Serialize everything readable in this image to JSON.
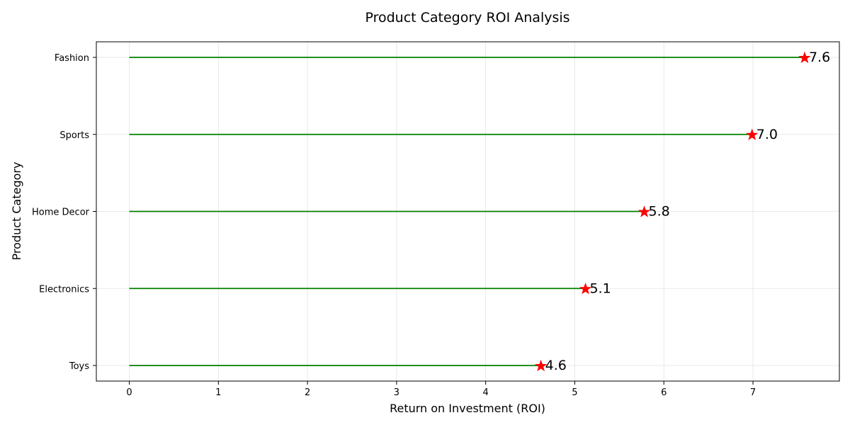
{
  "chart_data": {
    "type": "lollipop",
    "title": "Product Category ROI Analysis",
    "xlabel": "Return on Investment (ROI)",
    "ylabel": "Product Category",
    "xlim": [
      -0.37,
      7.97
    ],
    "xticks": [
      "0",
      "1",
      "2",
      "3",
      "4",
      "5",
      "6",
      "7"
    ],
    "categories": [
      "Toys",
      "Electronics",
      "Home Decor",
      "Sports",
      "Fashion"
    ],
    "values": [
      4.62,
      5.12,
      5.78,
      6.99,
      7.58
    ],
    "value_labels": [
      "4.6",
      "5.1",
      "5.8",
      "7.0",
      "7.6"
    ],
    "grid": true,
    "colors": {
      "stem": "#008000",
      "marker": "#ff0000"
    }
  }
}
